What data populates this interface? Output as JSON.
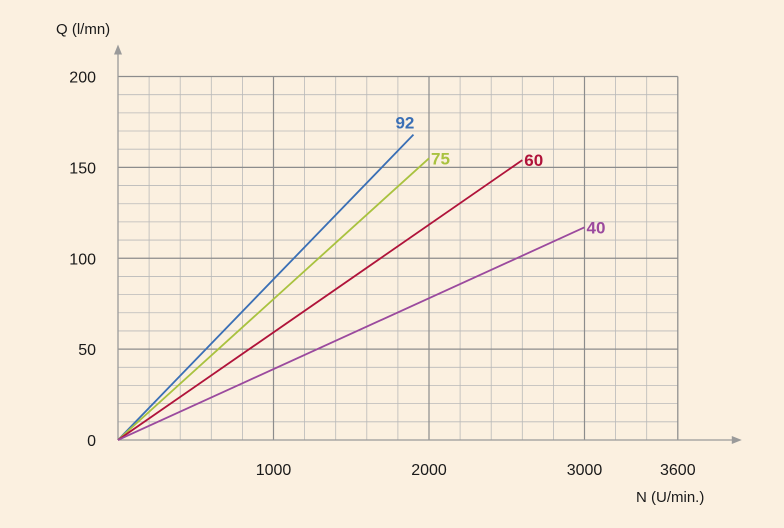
{
  "chart_data": {
    "type": "line",
    "title": "",
    "xlabel": "N (U/min.)",
    "ylabel": "Q (l/mn)",
    "xlim": [
      0,
      3800
    ],
    "ylim": [
      0,
      200
    ],
    "x_ticks": [
      {
        "value": 1000,
        "label": "1000"
      },
      {
        "value": 2000,
        "label": "2000"
      },
      {
        "value": 3000,
        "label": "3000"
      },
      {
        "value": 3600,
        "label": "3600"
      }
    ],
    "y_ticks": [
      {
        "value": 0,
        "label": "0"
      },
      {
        "value": 50,
        "label": "50"
      },
      {
        "value": 100,
        "label": "100"
      },
      {
        "value": 150,
        "label": "150"
      },
      {
        "value": 200,
        "label": "200"
      }
    ],
    "grid": true,
    "series": [
      {
        "name": "92",
        "color": "#3a6fb5",
        "x": [
          0,
          1900
        ],
        "y": [
          0,
          168
        ]
      },
      {
        "name": "75",
        "color": "#a9c23f",
        "x": [
          0,
          2000
        ],
        "y": [
          0,
          155
        ]
      },
      {
        "name": "60",
        "color": "#b0133a",
        "x": [
          0,
          2600
        ],
        "y": [
          0,
          154
        ]
      },
      {
        "name": "40",
        "color": "#9b4a9e",
        "x": [
          0,
          3000
        ],
        "y": [
          0,
          117
        ]
      }
    ]
  }
}
